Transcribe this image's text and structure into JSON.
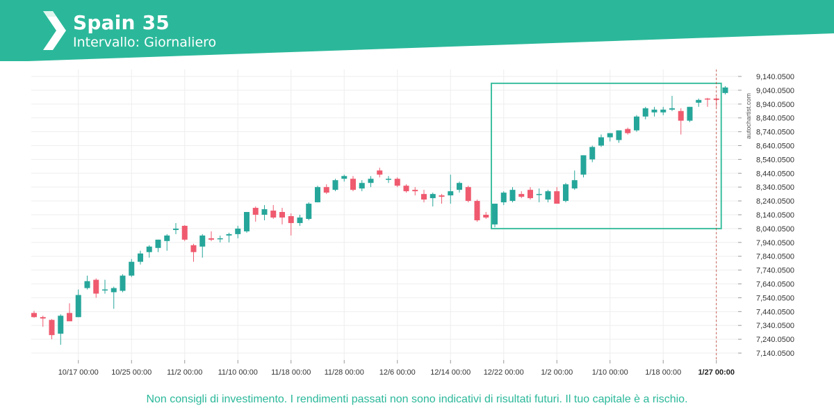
{
  "header": {
    "title": "Spain 35",
    "subtitle": "Intervallo: Giornaliero",
    "brand_color": "#2bb89a"
  },
  "watermark": "autochartist.com",
  "disclaimer": "Non consigli di investimento. I rendimenti passati non sono indicativi di risultati futuri. Il tuo capitale è a rischio.",
  "colors": {
    "up": "#26a69a",
    "down": "#ef5a6f",
    "box": "#3dbf9f",
    "grid": "#eeeeee",
    "axis_text": "#333333"
  },
  "chart_data": {
    "type": "candlestick",
    "instrument": "Spain 35",
    "interval": "Giornaliero",
    "ylim": [
      7090,
      9190
    ],
    "y_ticks": [
      "9,140.0500",
      "9,040.0500",
      "8,940.0500",
      "8,840.0500",
      "8,740.0500",
      "8,640.0500",
      "8,540.0500",
      "8,440.0500",
      "8,340.0500",
      "8,240.0500",
      "8,140.0500",
      "8,040.0500",
      "7,940.0500",
      "7,840.0500",
      "7,740.0500",
      "7,640.0500",
      "7,540.0500",
      "7,440.0500",
      "7,340.0500",
      "7,240.0500",
      "7,140.0500"
    ],
    "y_tick_values": [
      9140.05,
      9040.05,
      8940.05,
      8840.05,
      8740.05,
      8640.05,
      8540.05,
      8440.05,
      8340.05,
      8240.05,
      8140.05,
      8040.05,
      7940.05,
      7840.05,
      7740.05,
      7640.05,
      7540.05,
      7440.05,
      7340.05,
      7240.05,
      7140.05
    ],
    "x_ticks": [
      {
        "label": "10/17 00:00",
        "index": 5
      },
      {
        "label": "10/25 00:00",
        "index": 11
      },
      {
        "label": "11/2 00:00",
        "index": 17
      },
      {
        "label": "11/10 00:00",
        "index": 23
      },
      {
        "label": "11/18 00:00",
        "index": 29
      },
      {
        "label": "11/28 00:00",
        "index": 35
      },
      {
        "label": "12/6 00:00",
        "index": 41
      },
      {
        "label": "12/14 00:00",
        "index": 47
      },
      {
        "label": "12/22 00:00",
        "index": 53
      },
      {
        "label": "1/2 00:00",
        "index": 59
      },
      {
        "label": "1/10 00:00",
        "index": 65
      },
      {
        "label": "1/18 00:00",
        "index": 71
      },
      {
        "label": "1/27 00:00",
        "index": 77,
        "highlight": true
      }
    ],
    "candles": [
      {
        "o": 7430,
        "h": 7445,
        "l": 7395,
        "c": 7400
      },
      {
        "o": 7400,
        "h": 7410,
        "l": 7330,
        "c": 7390
      },
      {
        "o": 7380,
        "h": 7385,
        "l": 7240,
        "c": 7270
      },
      {
        "o": 7280,
        "h": 7420,
        "l": 7200,
        "c": 7410
      },
      {
        "o": 7430,
        "h": 7500,
        "l": 7370,
        "c": 7370
      },
      {
        "o": 7400,
        "h": 7600,
        "l": 7400,
        "c": 7560
      },
      {
        "o": 7610,
        "h": 7700,
        "l": 7600,
        "c": 7660
      },
      {
        "o": 7670,
        "h": 7680,
        "l": 7540,
        "c": 7570
      },
      {
        "o": 7600,
        "h": 7670,
        "l": 7570,
        "c": 7600
      },
      {
        "o": 7580,
        "h": 7620,
        "l": 7460,
        "c": 7610
      },
      {
        "o": 7590,
        "h": 7710,
        "l": 7580,
        "c": 7700
      },
      {
        "o": 7700,
        "h": 7820,
        "l": 7690,
        "c": 7800
      },
      {
        "o": 7800,
        "h": 7880,
        "l": 7780,
        "c": 7860
      },
      {
        "o": 7870,
        "h": 7920,
        "l": 7830,
        "c": 7910
      },
      {
        "o": 7900,
        "h": 7960,
        "l": 7870,
        "c": 7960
      },
      {
        "o": 7950,
        "h": 8000,
        "l": 7880,
        "c": 7990
      },
      {
        "o": 8030,
        "h": 8080,
        "l": 8000,
        "c": 8040
      },
      {
        "o": 8060,
        "h": 8065,
        "l": 7950,
        "c": 7960
      },
      {
        "o": 7920,
        "h": 7930,
        "l": 7800,
        "c": 7870
      },
      {
        "o": 7910,
        "h": 8000,
        "l": 7830,
        "c": 7990
      },
      {
        "o": 7970,
        "h": 8020,
        "l": 7950,
        "c": 7960
      },
      {
        "o": 7970,
        "h": 7990,
        "l": 7940,
        "c": 7970
      },
      {
        "o": 7990,
        "h": 8010,
        "l": 7940,
        "c": 8000
      },
      {
        "o": 8000,
        "h": 8060,
        "l": 7970,
        "c": 8040
      },
      {
        "o": 8020,
        "h": 8160,
        "l": 8010,
        "c": 8160
      },
      {
        "o": 8190,
        "h": 8200,
        "l": 8090,
        "c": 8140
      },
      {
        "o": 8140,
        "h": 8210,
        "l": 8100,
        "c": 8180
      },
      {
        "o": 8170,
        "h": 8210,
        "l": 8110,
        "c": 8120
      },
      {
        "o": 8160,
        "h": 8190,
        "l": 8070,
        "c": 8120
      },
      {
        "o": 8130,
        "h": 8150,
        "l": 7990,
        "c": 8080
      },
      {
        "o": 8080,
        "h": 8140,
        "l": 8060,
        "c": 8120
      },
      {
        "o": 8110,
        "h": 8230,
        "l": 8100,
        "c": 8220
      },
      {
        "o": 8230,
        "h": 8350,
        "l": 8230,
        "c": 8340
      },
      {
        "o": 8340,
        "h": 8360,
        "l": 8290,
        "c": 8300
      },
      {
        "o": 8320,
        "h": 8400,
        "l": 8310,
        "c": 8390
      },
      {
        "o": 8400,
        "h": 8430,
        "l": 8380,
        "c": 8420
      },
      {
        "o": 8400,
        "h": 8420,
        "l": 8310,
        "c": 8320
      },
      {
        "o": 8330,
        "h": 8390,
        "l": 8310,
        "c": 8370
      },
      {
        "o": 8370,
        "h": 8420,
        "l": 8340,
        "c": 8400
      },
      {
        "o": 8460,
        "h": 8480,
        "l": 8410,
        "c": 8430
      },
      {
        "o": 8400,
        "h": 8420,
        "l": 8370,
        "c": 8400
      },
      {
        "o": 8400,
        "h": 8410,
        "l": 8340,
        "c": 8350
      },
      {
        "o": 8350,
        "h": 8360,
        "l": 8300,
        "c": 8310
      },
      {
        "o": 8320,
        "h": 8340,
        "l": 8280,
        "c": 8310
      },
      {
        "o": 8290,
        "h": 8320,
        "l": 8230,
        "c": 8250
      },
      {
        "o": 8260,
        "h": 8300,
        "l": 8200,
        "c": 8290
      },
      {
        "o": 8280,
        "h": 8290,
        "l": 8220,
        "c": 8270
      },
      {
        "o": 8280,
        "h": 8430,
        "l": 8220,
        "c": 8310
      },
      {
        "o": 8320,
        "h": 8380,
        "l": 8300,
        "c": 8370
      },
      {
        "o": 8340,
        "h": 8350,
        "l": 8230,
        "c": 8240
      },
      {
        "o": 8240,
        "h": 8250,
        "l": 8090,
        "c": 8100
      },
      {
        "o": 8140,
        "h": 8160,
        "l": 8110,
        "c": 8120
      },
      {
        "o": 8070,
        "h": 8220,
        "l": 8050,
        "c": 8220
      },
      {
        "o": 8230,
        "h": 8310,
        "l": 8210,
        "c": 8300
      },
      {
        "o": 8240,
        "h": 8340,
        "l": 8230,
        "c": 8320
      },
      {
        "o": 8290,
        "h": 8310,
        "l": 8260,
        "c": 8270
      },
      {
        "o": 8320,
        "h": 8340,
        "l": 8250,
        "c": 8260
      },
      {
        "o": 8290,
        "h": 8330,
        "l": 8230,
        "c": 8290
      },
      {
        "o": 8250,
        "h": 8320,
        "l": 8230,
        "c": 8310
      },
      {
        "o": 8310,
        "h": 8340,
        "l": 8220,
        "c": 8220
      },
      {
        "o": 8240,
        "h": 8370,
        "l": 8230,
        "c": 8360
      },
      {
        "o": 8330,
        "h": 8460,
        "l": 8320,
        "c": 8390
      },
      {
        "o": 8430,
        "h": 8570,
        "l": 8410,
        "c": 8570
      },
      {
        "o": 8540,
        "h": 8640,
        "l": 8520,
        "c": 8630
      },
      {
        "o": 8640,
        "h": 8720,
        "l": 8630,
        "c": 8700
      },
      {
        "o": 8700,
        "h": 8730,
        "l": 8670,
        "c": 8730
      },
      {
        "o": 8680,
        "h": 8750,
        "l": 8660,
        "c": 8750
      },
      {
        "o": 8760,
        "h": 8770,
        "l": 8720,
        "c": 8730
      },
      {
        "o": 8750,
        "h": 8860,
        "l": 8740,
        "c": 8850
      },
      {
        "o": 8850,
        "h": 8920,
        "l": 8830,
        "c": 8910
      },
      {
        "o": 8880,
        "h": 8920,
        "l": 8850,
        "c": 8900
      },
      {
        "o": 8880,
        "h": 8920,
        "l": 8860,
        "c": 8900
      },
      {
        "o": 8900,
        "h": 9000,
        "l": 8890,
        "c": 8910
      },
      {
        "o": 8890,
        "h": 8910,
        "l": 8720,
        "c": 8820
      },
      {
        "o": 8820,
        "h": 8920,
        "l": 8810,
        "c": 8920
      },
      {
        "o": 8950,
        "h": 8980,
        "l": 8920,
        "c": 8970
      },
      {
        "o": 8980,
        "h": 8985,
        "l": 8920,
        "c": 8975
      },
      {
        "o": 8980,
        "h": 8990,
        "l": 8920,
        "c": 8970
      },
      {
        "o": 9020,
        "h": 9070,
        "l": 9010,
        "c": 9060
      }
    ],
    "pattern_box": {
      "start_index": 52,
      "end_index": 77,
      "top": 9065,
      "bottom": 8050
    },
    "current_time_marker": {
      "index": 77,
      "label": "1/27 00:00"
    }
  }
}
